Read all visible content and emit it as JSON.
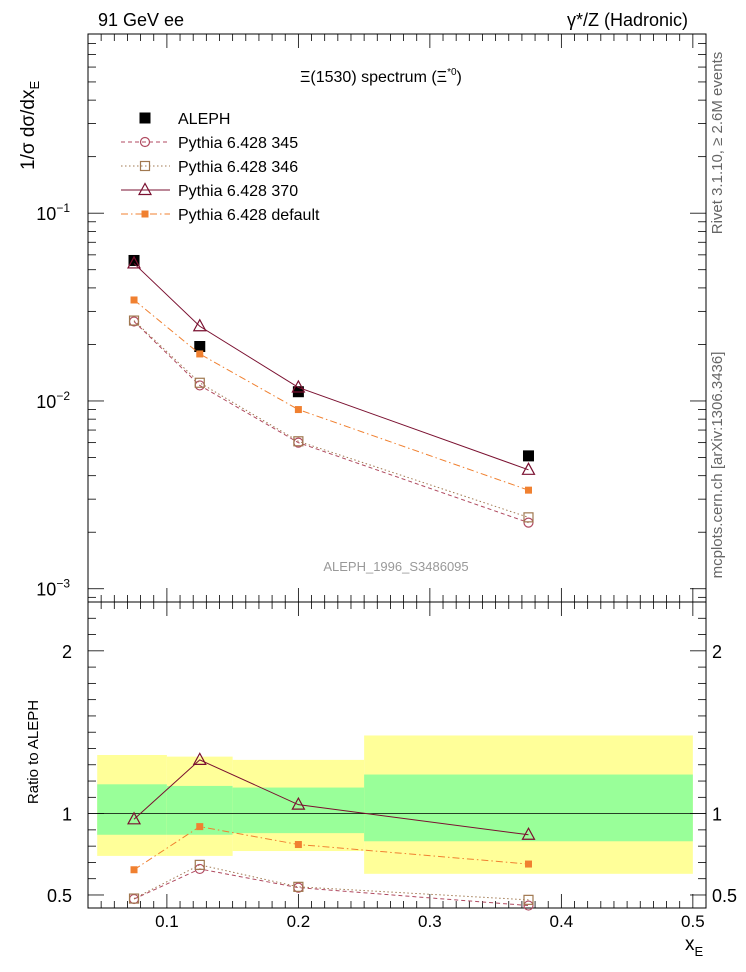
{
  "header": {
    "left": "91 GeV ee",
    "right": "γ*/Z (Hadronic)"
  },
  "side_labels": {
    "upper": "Rivet 3.1.10, ≥ 2.6M events",
    "lower": "mcplots.cern.ch [arXiv:1306.3436]"
  },
  "chart_data": [
    {
      "type": "scatter",
      "panel": "main",
      "title_base": "Ξ(1530) spectrum (Ξ",
      "title_sup": "*0",
      "title_end": ")",
      "ylabel_main": "1/σ dσ/dx",
      "ylabel_sub": "E",
      "xlabel_main": "x",
      "xlabel_sub": "E",
      "watermark": "ALEPH_1996_S3486095",
      "yscale": "log",
      "ylim": [
        0.00085,
        0.9
      ],
      "xlim": [
        0.04,
        0.51
      ],
      "ytick_labels": [
        {
          "base": "10",
          "exp": "−3"
        },
        {
          "base": "10",
          "exp": "−2"
        },
        {
          "base": "10",
          "exp": "−1"
        }
      ],
      "x": [
        0.075,
        0.125,
        0.2,
        0.375
      ],
      "legend_placement": "top-left",
      "series": [
        {
          "name": "ALEPH",
          "values": [
            0.056,
            0.0195,
            0.0112,
            0.0051
          ],
          "color": "#000000",
          "marker": "filled-square",
          "line": "none"
        },
        {
          "name": "Pythia 6.428 345",
          "values": [
            0.0265,
            0.0121,
            0.006,
            0.00225
          ],
          "color": "#b04a60",
          "marker": "open-circle",
          "line": "dashed"
        },
        {
          "name": "Pythia 6.428 346",
          "values": [
            0.0268,
            0.0125,
            0.0061,
            0.0024
          ],
          "color": "#a07850",
          "marker": "open-square",
          "line": "dotted"
        },
        {
          "name": "Pythia 6.428 370",
          "values": [
            0.054,
            0.025,
            0.0118,
            0.0043
          ],
          "color": "#7a1030",
          "marker": "open-triangle",
          "line": "solid"
        },
        {
          "name": "Pythia 6.428 default",
          "values": [
            0.0345,
            0.0178,
            0.009,
            0.00335
          ],
          "color": "#f08030",
          "marker": "filled-square-small",
          "line": "dashdot"
        }
      ]
    },
    {
      "type": "scatter",
      "panel": "ratio",
      "ylabel": "Ratio to ALEPH",
      "ylim": [
        0.42,
        2.3
      ],
      "xlim": [
        0.04,
        0.51
      ],
      "yticks": [
        0.5,
        1,
        2
      ],
      "ytick_labels": [
        "0.5",
        "1",
        "2"
      ],
      "xticks": [
        0.1,
        0.2,
        0.3,
        0.4,
        0.5
      ],
      "xtick_labels": [
        "0.1",
        "0.2",
        "0.3",
        "0.4",
        "0.5"
      ],
      "x": [
        0.075,
        0.125,
        0.2,
        0.375
      ],
      "bands": [
        {
          "x0": 0.047,
          "x1": 0.1,
          "yellow": [
            0.74,
            1.36
          ],
          "green": [
            0.87,
            1.18
          ]
        },
        {
          "x0": 0.1,
          "x1": 0.15,
          "yellow": [
            0.74,
            1.35
          ],
          "green": [
            0.87,
            1.17
          ]
        },
        {
          "x0": 0.15,
          "x1": 0.25,
          "yellow": [
            0.77,
            1.33
          ],
          "green": [
            0.88,
            1.16
          ]
        },
        {
          "x0": 0.25,
          "x1": 0.5,
          "yellow": [
            0.63,
            1.48
          ],
          "green": [
            0.83,
            1.24
          ]
        }
      ],
      "band_colors": {
        "yellow": "#ffff99",
        "green": "#99ff99"
      },
      "series": [
        {
          "name": "Pythia 6.428 345",
          "values": [
            0.475,
            0.66,
            0.545,
            0.435
          ],
          "color": "#b04a60",
          "marker": "open-circle",
          "line": "dashed"
        },
        {
          "name": "Pythia 6.428 346",
          "values": [
            0.478,
            0.685,
            0.55,
            0.47
          ],
          "color": "#a07850",
          "marker": "open-square",
          "line": "dotted"
        },
        {
          "name": "Pythia 6.428 370",
          "values": [
            0.965,
            1.33,
            1.055,
            0.87
          ],
          "color": "#7a1030",
          "marker": "open-triangle",
          "line": "solid"
        },
        {
          "name": "Pythia 6.428 default",
          "values": [
            0.655,
            0.92,
            0.81,
            0.69
          ],
          "color": "#f08030",
          "marker": "filled-square-small",
          "line": "dashdot"
        }
      ]
    }
  ]
}
